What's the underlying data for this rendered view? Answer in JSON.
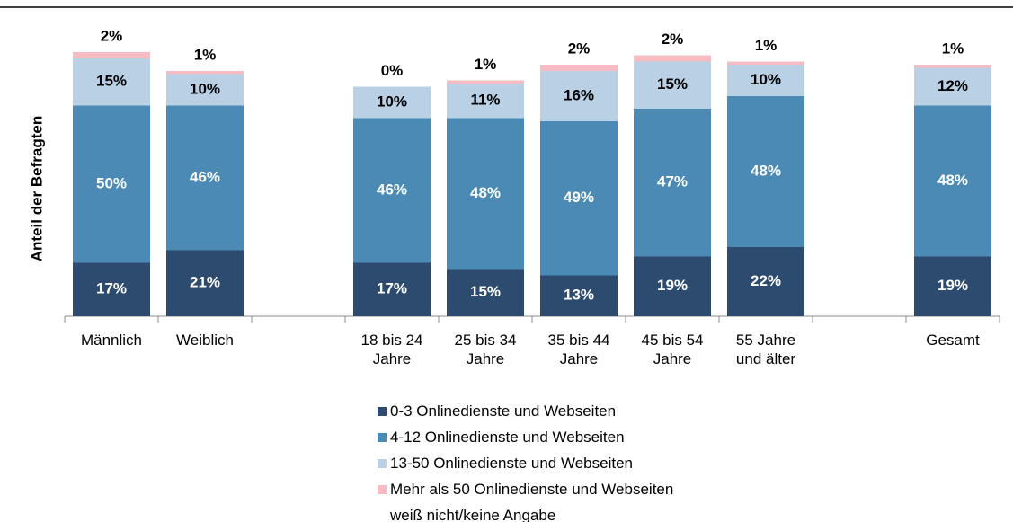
{
  "chart_data": {
    "type": "stacked-bar",
    "y_label": "Anteil der Befragten",
    "categories": [
      "Männlich",
      "Weiblich",
      null,
      "18 bis 24 Jahre",
      "25 bis 34 Jahre",
      "35 bis 44 Jahre",
      "45 bis 54 Jahre",
      "55 Jahre und älter",
      null,
      "Gesamt"
    ],
    "ylim": [
      0,
      100
    ],
    "series": [
      {
        "name": "0-3 Onlinedienste und Webseiten",
        "color": "#2d4a6f",
        "values": [
          17,
          21,
          null,
          17,
          15,
          13,
          19,
          22,
          null,
          19
        ],
        "value_labels": [
          "17%",
          "21%",
          null,
          "17%",
          "15%",
          "13%",
          "19%",
          "22%",
          null,
          "19%"
        ]
      },
      {
        "name": "4-12 Onlinedienste und Webseiten",
        "color": "#4a8ab5",
        "values": [
          50,
          46,
          null,
          46,
          48,
          49,
          47,
          48,
          null,
          48
        ],
        "value_labels": [
          "50%",
          "46%",
          null,
          "46%",
          "48%",
          "49%",
          "47%",
          "48%",
          null,
          "48%"
        ]
      },
      {
        "name": "13-50 Onlinedienste und Webseiten",
        "color": "#b9d0e5",
        "values": [
          15,
          10,
          null,
          10,
          11,
          16,
          15,
          10,
          null,
          12
        ],
        "value_labels": [
          "15%",
          "10%",
          null,
          "10%",
          "11%",
          "16%",
          "15%",
          "10%",
          null,
          "12%"
        ]
      },
      {
        "name": "Mehr als 50 Onlinedienste und Webseiten",
        "color": "#f7bcc3",
        "values": [
          2,
          1,
          null,
          0,
          1,
          2,
          2,
          1,
          null,
          1
        ],
        "value_labels": [
          "2%",
          "1%",
          null,
          "0%",
          "1%",
          "2%",
          "2%",
          "1%",
          null,
          "1%"
        ]
      },
      {
        "name": "weiß nicht/keine Angabe",
        "color": "#ffffff",
        "values": [
          null,
          null,
          null,
          null,
          null,
          null,
          null,
          null,
          null,
          null
        ]
      }
    ]
  }
}
